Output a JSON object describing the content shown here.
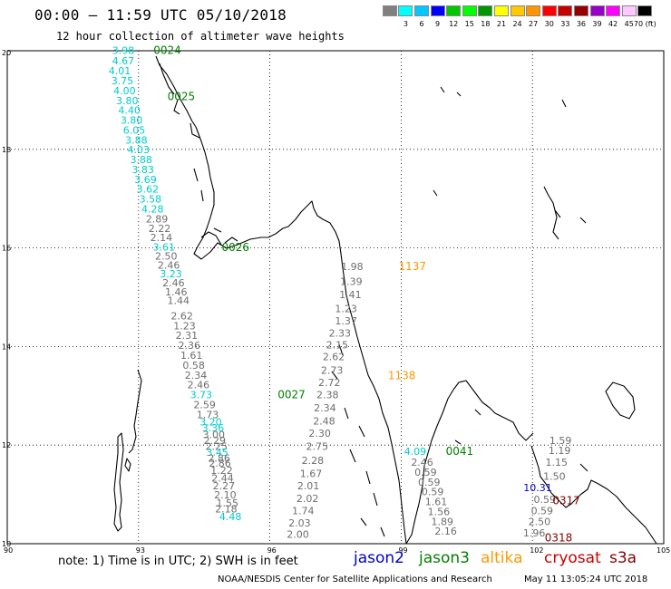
{
  "header": {
    "title": "00:00 – 11:59 UTC 05/10/2018",
    "subtitle": "12 hour collection of altimeter wave heights"
  },
  "colorbar": {
    "colors": [
      "#808080",
      "#00ffff",
      "#00c8ff",
      "#0000ff",
      "#00c800",
      "#00ff00",
      "#009600",
      "#ffff00",
      "#ffc800",
      "#ff9600",
      "#ff0000",
      "#c80000",
      "#960000",
      "#9600c8",
      "#ff00ff",
      "#ffc8ff",
      "#000000"
    ],
    "labels": [
      "",
      "3",
      "6",
      "9",
      "12",
      "15",
      "18",
      "21",
      "24",
      "27",
      "30",
      "33",
      "36",
      "39",
      "42",
      "45",
      "70"
    ],
    "unit": "(ft)"
  },
  "axes": {
    "lon_ticks": [
      "90",
      "93",
      "96",
      "99",
      "102",
      "105"
    ],
    "lat_ticks": [
      "20",
      "18",
      "16",
      "14",
      "12",
      "10"
    ],
    "lon_range": [
      90,
      105
    ],
    "lat_range": [
      10,
      20
    ]
  },
  "satellite_colors": {
    "jason2": "#0000cc",
    "jason3": "#008000",
    "altika": "#ff9900",
    "cryosat": "#cc0000",
    "s3a": "#880000",
    "gray": "#6e6e6e",
    "cyan": "#00cccc"
  },
  "time_labels": [
    {
      "text": "0024",
      "color": "jason3",
      "lat": 19.94,
      "lon": 93.34
    },
    {
      "text": "0025",
      "color": "jason3",
      "lat": 19.0,
      "lon": 93.66
    },
    {
      "text": "0026",
      "color": "jason3",
      "lat": 15.94,
      "lon": 94.9
    },
    {
      "text": "0027",
      "color": "jason3",
      "lat": 12.95,
      "lon": 96.18
    },
    {
      "text": "1137",
      "color": "altika",
      "lat": 15.55,
      "lon": 98.94
    },
    {
      "text": "1138",
      "color": "altika",
      "lat": 13.34,
      "lon": 98.7
    },
    {
      "text": "0041",
      "color": "jason3",
      "lat": 11.8,
      "lon": 100.02
    },
    {
      "text": "0317",
      "color": "s3a",
      "lat": 10.8,
      "lon": 102.46
    },
    {
      "text": "0318",
      "color": "s3a",
      "lat": 10.05,
      "lon": 102.28
    }
  ],
  "tracks": [
    {
      "name": "jason3-pass-west",
      "points": [
        [
          "3.98",
          "cyan",
          19.94,
          92.65
        ],
        [
          "4.67",
          "cyan",
          19.72,
          92.65
        ],
        [
          "4.01",
          "cyan",
          19.52,
          92.57
        ],
        [
          "3.75",
          "cyan",
          19.32,
          92.63
        ],
        [
          "4.00",
          "cyan",
          19.12,
          92.68
        ],
        [
          "3.80",
          "cyan",
          18.92,
          92.74
        ],
        [
          "4.40",
          "cyan",
          18.72,
          92.79
        ],
        [
          "3.80",
          "cyan",
          18.52,
          92.84
        ],
        [
          "6.05",
          "cyan",
          18.32,
          92.9
        ],
        [
          "3.88",
          "cyan",
          18.12,
          92.95
        ],
        [
          "4.03",
          "cyan",
          17.92,
          93.0
        ],
        [
          "3.88",
          "cyan",
          17.72,
          93.06
        ],
        [
          "3.83",
          "cyan",
          17.52,
          93.1
        ],
        [
          "3.69",
          "cyan",
          17.32,
          93.16
        ],
        [
          "3.62",
          "cyan",
          17.12,
          93.21
        ],
        [
          "3.58",
          "cyan",
          16.92,
          93.27
        ],
        [
          "4.28",
          "cyan",
          16.72,
          93.32
        ],
        [
          "2.89",
          "gray",
          16.52,
          93.42
        ],
        [
          "2.22",
          "gray",
          16.32,
          93.48
        ],
        [
          "2.14",
          "gray",
          16.14,
          93.52
        ],
        [
          "3.61",
          "cyan",
          15.95,
          93.58
        ],
        [
          "2.50",
          "gray",
          15.76,
          93.63
        ],
        [
          "2.46",
          "gray",
          15.58,
          93.69
        ],
        [
          "3.23",
          "cyan",
          15.4,
          93.74
        ],
        [
          "2.46",
          "gray",
          15.22,
          93.8
        ],
        [
          "1.46",
          "gray",
          15.04,
          93.86
        ],
        [
          "1.44",
          "gray",
          14.86,
          93.91
        ],
        [
          "2.62",
          "gray",
          14.55,
          93.99
        ],
        [
          "1.23",
          "gray",
          14.35,
          94.05
        ],
        [
          "2.31",
          "gray",
          14.15,
          94.1
        ],
        [
          "2.36",
          "gray",
          13.95,
          94.16
        ],
        [
          "1.61",
          "gray",
          13.75,
          94.21
        ],
        [
          "0.58",
          "gray",
          13.55,
          94.26
        ],
        [
          "2.34",
          "gray",
          13.35,
          94.31
        ],
        [
          "2.46",
          "gray",
          13.15,
          94.37
        ],
        [
          "3.73",
          "cyan",
          12.95,
          94.43
        ],
        [
          "2.59",
          "gray",
          12.75,
          94.51
        ],
        [
          "1.73",
          "gray",
          12.55,
          94.58
        ],
        [
          "3.20",
          "cyan",
          12.4,
          94.65
        ],
        [
          "3.36",
          "cyan",
          12.28,
          94.7
        ],
        [
          "3.00",
          "gray",
          12.14,
          94.72
        ],
        [
          "2.29",
          "gray",
          12.02,
          94.74
        ],
        [
          "2.25",
          "gray",
          11.9,
          94.78
        ],
        [
          "3.45",
          "cyan",
          11.78,
          94.8
        ],
        [
          "2.86",
          "gray",
          11.66,
          94.84
        ],
        [
          "2.86",
          "gray",
          11.56,
          94.86
        ],
        [
          "1.22",
          "gray",
          11.42,
          94.9
        ],
        [
          "2.44",
          "gray",
          11.26,
          94.92
        ],
        [
          "2.27",
          "gray",
          11.1,
          94.95
        ],
        [
          "2.10",
          "gray",
          10.92,
          94.98
        ],
        [
          "1.55",
          "gray",
          10.75,
          95.03
        ],
        [
          "2.18",
          "gray",
          10.63,
          95.0
        ],
        [
          "4.48",
          "cyan",
          10.48,
          95.1
        ]
      ]
    },
    {
      "name": "altika-pass",
      "points": [
        [
          "1.98",
          "gray",
          15.55,
          97.88
        ],
        [
          "1.39",
          "gray",
          15.25,
          97.86
        ],
        [
          "1.41",
          "gray",
          14.98,
          97.84
        ],
        [
          "1.23",
          "gray",
          14.7,
          97.74
        ],
        [
          "1.37",
          "gray",
          14.45,
          97.74
        ],
        [
          "2.33",
          "gray",
          14.2,
          97.6
        ],
        [
          "2.15",
          "gray",
          13.96,
          97.54
        ],
        [
          "2.62",
          "gray",
          13.72,
          97.46
        ],
        [
          "2.73",
          "gray",
          13.45,
          97.42
        ],
        [
          "2.72",
          "gray",
          13.2,
          97.36
        ],
        [
          "2.38",
          "gray",
          12.95,
          97.32
        ],
        [
          "2.34",
          "gray",
          12.68,
          97.26
        ],
        [
          "2.48",
          "gray",
          12.42,
          97.24
        ],
        [
          "2.30",
          "gray",
          12.17,
          97.14
        ],
        [
          "2.75",
          "gray",
          11.9,
          97.08
        ],
        [
          "2.28",
          "gray",
          11.62,
          96.98
        ],
        [
          "1.67",
          "gray",
          11.35,
          96.94
        ],
        [
          "2.01",
          "gray",
          11.1,
          96.88
        ],
        [
          "2.02",
          "gray",
          10.85,
          96.86
        ],
        [
          "1.74",
          "gray",
          10.6,
          96.76
        ],
        [
          "2.03",
          "gray",
          10.35,
          96.68
        ],
        [
          "2.00",
          "gray",
          10.12,
          96.64
        ]
      ]
    },
    {
      "name": "jason3-pass-east",
      "points": [
        [
          "4.09",
          "cyan",
          11.8,
          99.32
        ],
        [
          "2.46",
          "gray",
          11.58,
          99.48
        ],
        [
          "0.59",
          "gray",
          11.38,
          99.56
        ],
        [
          "0.59",
          "gray",
          11.18,
          99.64
        ],
        [
          "0.59",
          "gray",
          10.98,
          99.72
        ],
        [
          "1.61",
          "gray",
          10.78,
          99.8
        ],
        [
          "1.56",
          "gray",
          10.58,
          99.86
        ],
        [
          "1.89",
          "gray",
          10.38,
          99.94
        ],
        [
          "2.16",
          "gray",
          10.18,
          100.02
        ]
      ]
    },
    {
      "name": "s3a-pass",
      "points": [
        [
          "1.59",
          "gray",
          12.02,
          102.64
        ],
        [
          "1.19",
          "gray",
          11.82,
          102.62
        ],
        [
          "1.15",
          "gray",
          11.58,
          102.55
        ],
        [
          "1.50",
          "gray",
          11.3,
          102.5
        ],
        [
          "10.31",
          "jason2",
          11.07,
          102.12
        ],
        [
          "0.59",
          "gray",
          10.83,
          102.28
        ],
        [
          "0.59",
          "gray",
          10.6,
          102.22
        ],
        [
          "2.50",
          "gray",
          10.38,
          102.16
        ],
        [
          "1.96",
          "gray",
          10.15,
          102.04
        ]
      ]
    }
  ],
  "legend": [
    {
      "label": "jason2",
      "color": "jason2"
    },
    {
      "label": "jason3",
      "color": "jason3"
    },
    {
      "label": "altika",
      "color": "altika"
    },
    {
      "label": "cryosat",
      "color": "cryosat"
    },
    {
      "label": "s3a",
      "color": "s3a"
    }
  ],
  "footer": {
    "note": "note: 1) Time is in UTC; 2) SWH is in feet",
    "credit": "NOAA/NESDIS Center for Satellite Applications and Research",
    "created": "May 11 13:05:24 UTC 2018"
  }
}
